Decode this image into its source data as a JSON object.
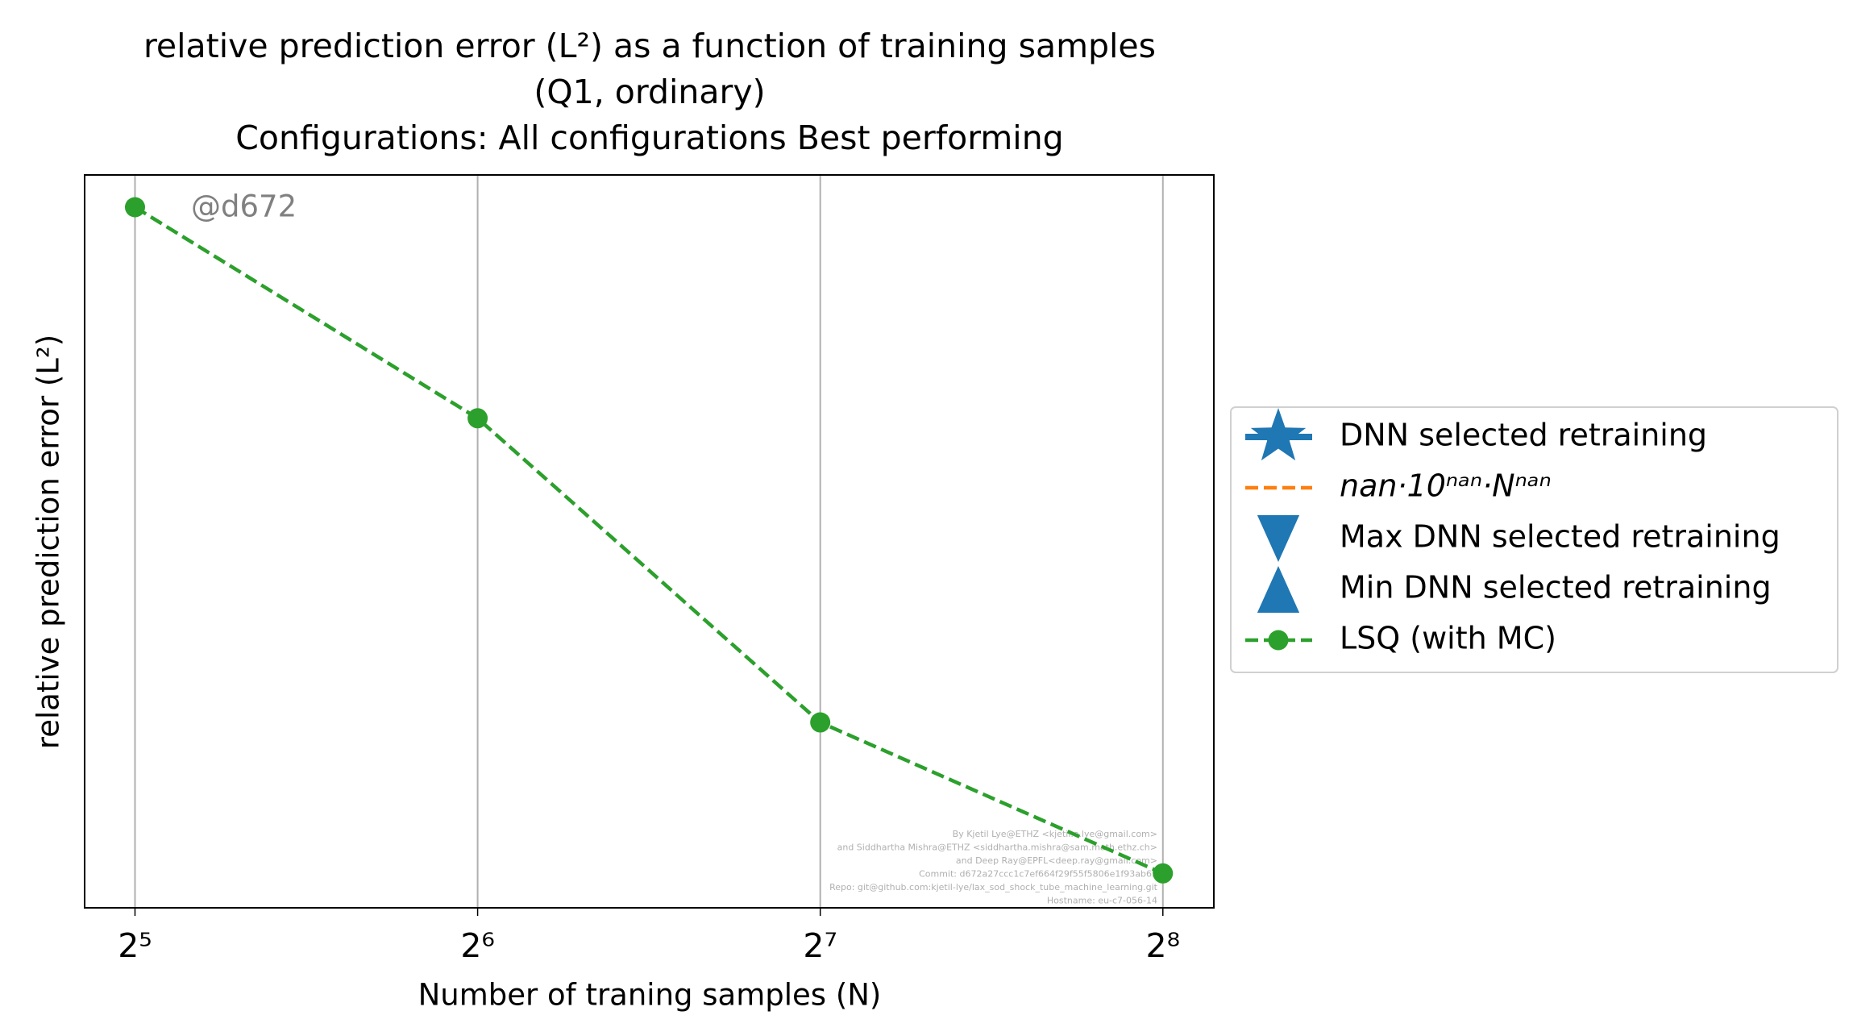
{
  "chart_data": {
    "type": "line",
    "title": [
      "relative prediction error (L²) as a function of training samples",
      "(Q1, ordinary)",
      "Configurations: All configurations Best performing"
    ],
    "xlabel": "Number of traning samples (N)",
    "ylabel": "relative prediction error (L²)",
    "annotation": "@d672",
    "watermark": [
      "By Kjetil Lye@ETHZ <kjetil.o.lye@gmail.com>",
      "and Siddhartha Mishra@ETHZ <siddhartha.mishra@sam.math.ethz.ch>",
      "and Deep Ray@EPFL<deep.ray@gmail.com>",
      "Commit: d672a27ccc1c7ef664f29f55f5806e1f93ab65",
      "Repo: git@github.com:kjetil-lye/lax_sod_shock_tube_machine_learning.git",
      "Hostname: eu-c7-056-14"
    ],
    "x": [
      32,
      64,
      128,
      256
    ],
    "xscale": "log2",
    "xlim": [
      28.9,
      283.8
    ],
    "xticks": [
      {
        "value": 32,
        "label": "2⁵"
      },
      {
        "value": 64,
        "label": "2⁶"
      },
      {
        "value": 128,
        "label": "2⁷"
      },
      {
        "value": 256,
        "label": "2⁸"
      }
    ],
    "ylim": [
      0,
      1
    ],
    "grid": "x",
    "legend": "outside right",
    "series": [
      {
        "name": "DNN selected retraining",
        "color": "#1f77b4",
        "marker": "star",
        "linestyle": "solid",
        "values": [
          null,
          null,
          null,
          null
        ]
      },
      {
        "name": "nan·10ⁿᵃⁿ·Nⁿᵃⁿ",
        "color": "#ff7f0e",
        "marker": "none",
        "linestyle": "dashed",
        "values": [
          null,
          null,
          null,
          null
        ]
      },
      {
        "name": "Max DNN selected retraining",
        "color": "#1f77b4",
        "marker": "triangle-down",
        "linestyle": "none",
        "values": [
          null,
          null,
          null,
          null
        ]
      },
      {
        "name": "Min DNN selected retraining",
        "color": "#1f77b4",
        "marker": "triangle-up",
        "linestyle": "none",
        "values": [
          null,
          null,
          null,
          null
        ]
      },
      {
        "name": "LSQ (with MC)",
        "color": "#2ca02c",
        "marker": "circle",
        "linestyle": "dashed",
        "values": [
          0.956,
          0.668,
          0.253,
          0.047
        ]
      }
    ]
  }
}
